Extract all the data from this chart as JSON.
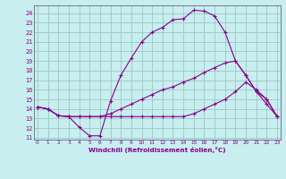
{
  "xlabel": "Windchill (Refroidissement éolien,°C)",
  "x_ticks": [
    0,
    1,
    2,
    3,
    4,
    5,
    6,
    7,
    8,
    9,
    10,
    11,
    12,
    13,
    14,
    15,
    16,
    17,
    18,
    19,
    20,
    21,
    22,
    23
  ],
  "y_ticks": [
    11,
    12,
    13,
    14,
    15,
    16,
    17,
    18,
    19,
    20,
    21,
    22,
    23,
    24
  ],
  "xlim": [
    -0.3,
    23.3
  ],
  "ylim": [
    10.8,
    24.8
  ],
  "bg_color": "#c8eef0",
  "grid_color": "#a0ccc8",
  "line_color": "#880088",
  "line1_x": [
    0,
    1,
    2,
    3,
    4,
    5,
    6,
    7,
    8,
    9,
    10,
    11,
    12,
    13,
    14,
    15,
    16,
    17,
    18,
    19,
    20,
    21,
    22,
    23
  ],
  "line1_y": [
    14.2,
    14.0,
    13.3,
    13.2,
    12.1,
    11.2,
    11.2,
    14.8,
    17.5,
    19.3,
    21.0,
    22.0,
    22.5,
    23.3,
    23.4,
    24.3,
    24.2,
    23.7,
    22.0,
    19.0,
    17.5,
    15.8,
    15.0,
    13.2
  ],
  "line2_x": [
    0,
    1,
    2,
    3,
    4,
    5,
    6,
    7,
    8,
    9,
    10,
    11,
    12,
    13,
    14,
    15,
    16,
    17,
    18,
    19,
    20,
    21,
    22,
    23
  ],
  "line2_y": [
    14.2,
    14.0,
    13.3,
    13.2,
    13.2,
    13.2,
    13.2,
    13.5,
    14.0,
    14.5,
    15.0,
    15.5,
    16.0,
    16.3,
    16.8,
    17.2,
    17.8,
    18.3,
    18.8,
    19.0,
    17.5,
    15.8,
    14.5,
    13.2
  ],
  "line3_x": [
    0,
    1,
    2,
    3,
    4,
    5,
    6,
    7,
    8,
    9,
    10,
    11,
    12,
    13,
    14,
    15,
    16,
    17,
    18,
    19,
    20,
    21,
    22,
    23
  ],
  "line3_y": [
    14.2,
    14.0,
    13.3,
    13.2,
    13.2,
    13.2,
    13.2,
    13.2,
    13.2,
    13.2,
    13.2,
    13.2,
    13.2,
    13.2,
    13.2,
    13.5,
    14.0,
    14.5,
    15.0,
    15.8,
    16.8,
    16.0,
    15.0,
    13.2
  ]
}
